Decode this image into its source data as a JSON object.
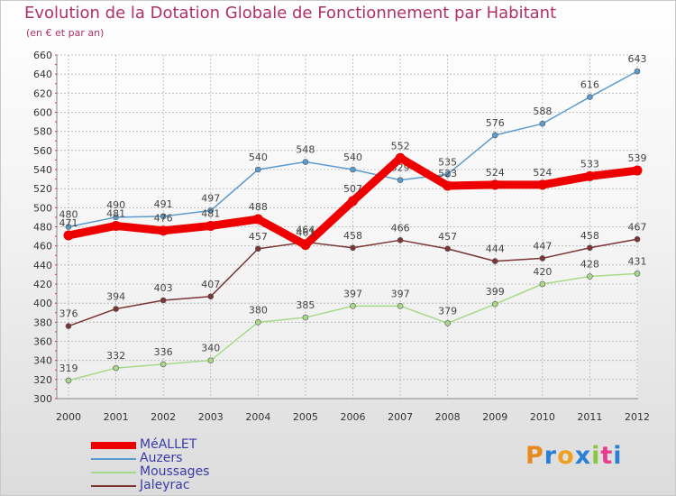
{
  "title": "Evolution de la Dotation Globale de Fonctionnement par Habitant",
  "subtitle": "(en € et par an)",
  "watermark": "Proxiti",
  "colors": {
    "grid": "#b4b4b4",
    "axis_text": "#333333",
    "title": "#b0306a",
    "legend_text": "#3a3aa8",
    "watermark_letters": [
      "#e88a1e",
      "#2a7fd6",
      "#f0a020",
      "#2a7fd6",
      "#8cc63f",
      "#e83c8c",
      "#2a7fd6"
    ]
  },
  "chart_data": {
    "type": "line",
    "categories": [
      "2000",
      "2001",
      "2002",
      "2003",
      "2004",
      "2005",
      "2006",
      "2007",
      "2008",
      "2009",
      "2010",
      "2011",
      "2012"
    ],
    "ylim": [
      300,
      660
    ],
    "yticks": [
      300,
      320,
      340,
      360,
      380,
      400,
      420,
      440,
      460,
      480,
      500,
      520,
      540,
      560,
      580,
      600,
      620,
      640,
      660
    ],
    "grid": true,
    "legend_position": "bottom-left",
    "series": [
      {
        "name": "MéALLET",
        "color": "#ee0000",
        "emphasis": true,
        "values": [
          471,
          481,
          476,
          481,
          488,
          461,
          507,
          552,
          523,
          524,
          524,
          533,
          539
        ]
      },
      {
        "name": "Auzers",
        "color": "#5b9bd0",
        "emphasis": false,
        "values": [
          480,
          490,
          491,
          497,
          540,
          548,
          540,
          529,
          535,
          576,
          588,
          616,
          643
        ]
      },
      {
        "name": "Moussages",
        "color": "#a8d98a",
        "emphasis": false,
        "values": [
          319,
          332,
          336,
          340,
          380,
          385,
          397,
          397,
          379,
          399,
          420,
          428,
          431
        ]
      },
      {
        "name": "Jaleyrac",
        "color": "#7a3535",
        "emphasis": false,
        "values": [
          376,
          394,
          403,
          407,
          457,
          464,
          458,
          466,
          457,
          444,
          447,
          458,
          467
        ]
      }
    ]
  }
}
